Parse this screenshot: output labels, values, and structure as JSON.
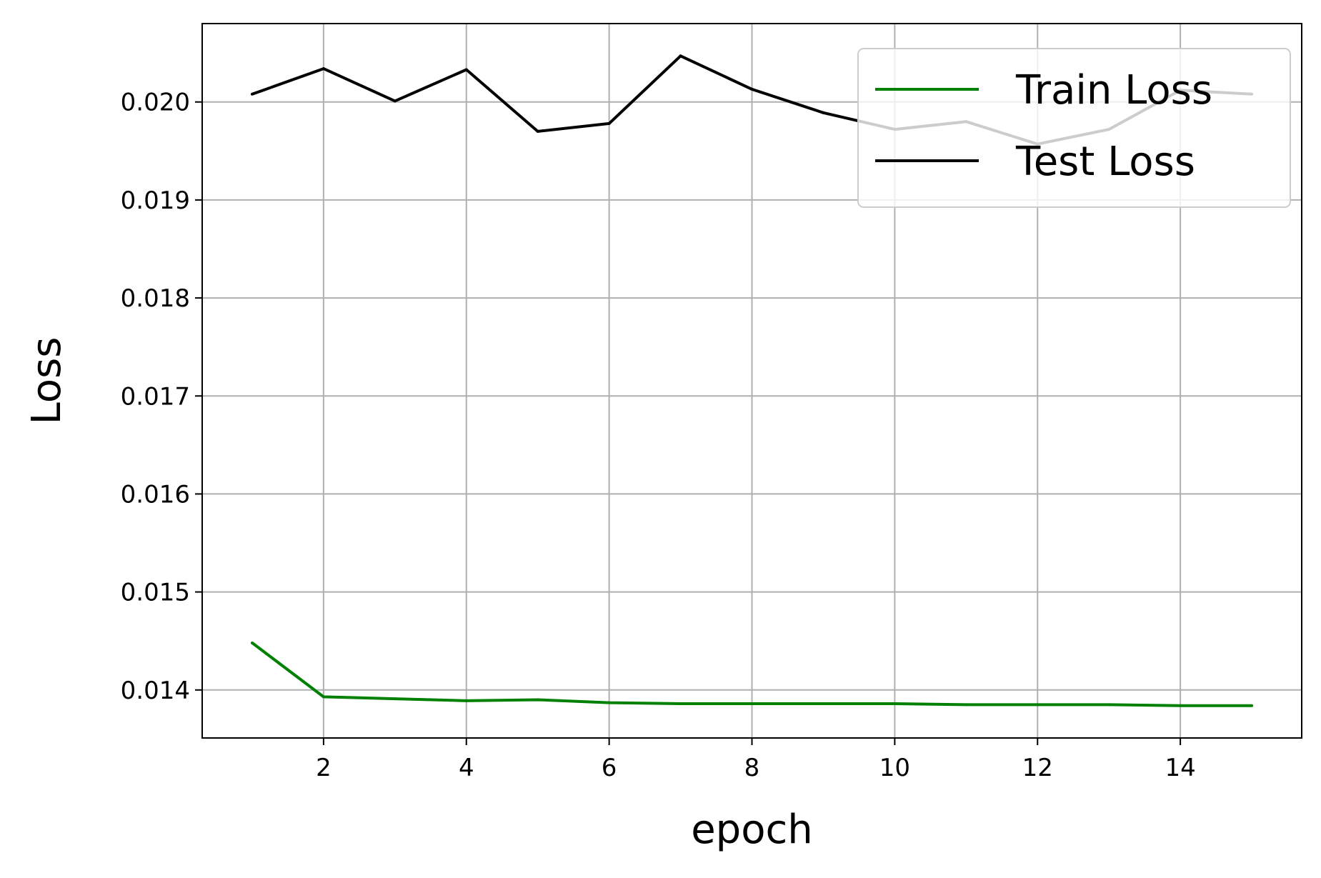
{
  "chart_data": {
    "type": "line",
    "title": "",
    "xlabel": "epoch",
    "ylabel": "Loss",
    "x": [
      1,
      2,
      3,
      4,
      5,
      6,
      7,
      8,
      9,
      10,
      11,
      12,
      13,
      14,
      15
    ],
    "xlim": [
      0.3,
      15.7
    ],
    "ylim": [
      0.01351,
      0.0208
    ],
    "xticks": [
      2,
      4,
      6,
      8,
      10,
      12,
      14
    ],
    "xtick_labels": [
      "2",
      "4",
      "6",
      "8",
      "10",
      "12",
      "14"
    ],
    "yticks": [
      0.014,
      0.015,
      0.016,
      0.017,
      0.018,
      0.019,
      0.02
    ],
    "ytick_labels": [
      "0.014",
      "0.015",
      "0.016",
      "0.017",
      "0.018",
      "0.019",
      "0.020"
    ],
    "grid": true,
    "legend_position": "top-right",
    "series": [
      {
        "name": "Train Loss",
        "color": "#008000",
        "values": [
          0.01448,
          0.01393,
          0.01391,
          0.01389,
          0.0139,
          0.01387,
          0.01386,
          0.01386,
          0.01386,
          0.01386,
          0.01385,
          0.01385,
          0.01385,
          0.01384,
          0.01384
        ]
      },
      {
        "name": "Test Loss",
        "color": "#000000",
        "values": [
          0.02008,
          0.02034,
          0.02001,
          0.02033,
          0.0197,
          0.01978,
          0.02047,
          0.02013,
          0.01989,
          0.01972,
          0.0198,
          0.01957,
          0.01972,
          0.02012,
          0.02008
        ]
      }
    ]
  }
}
